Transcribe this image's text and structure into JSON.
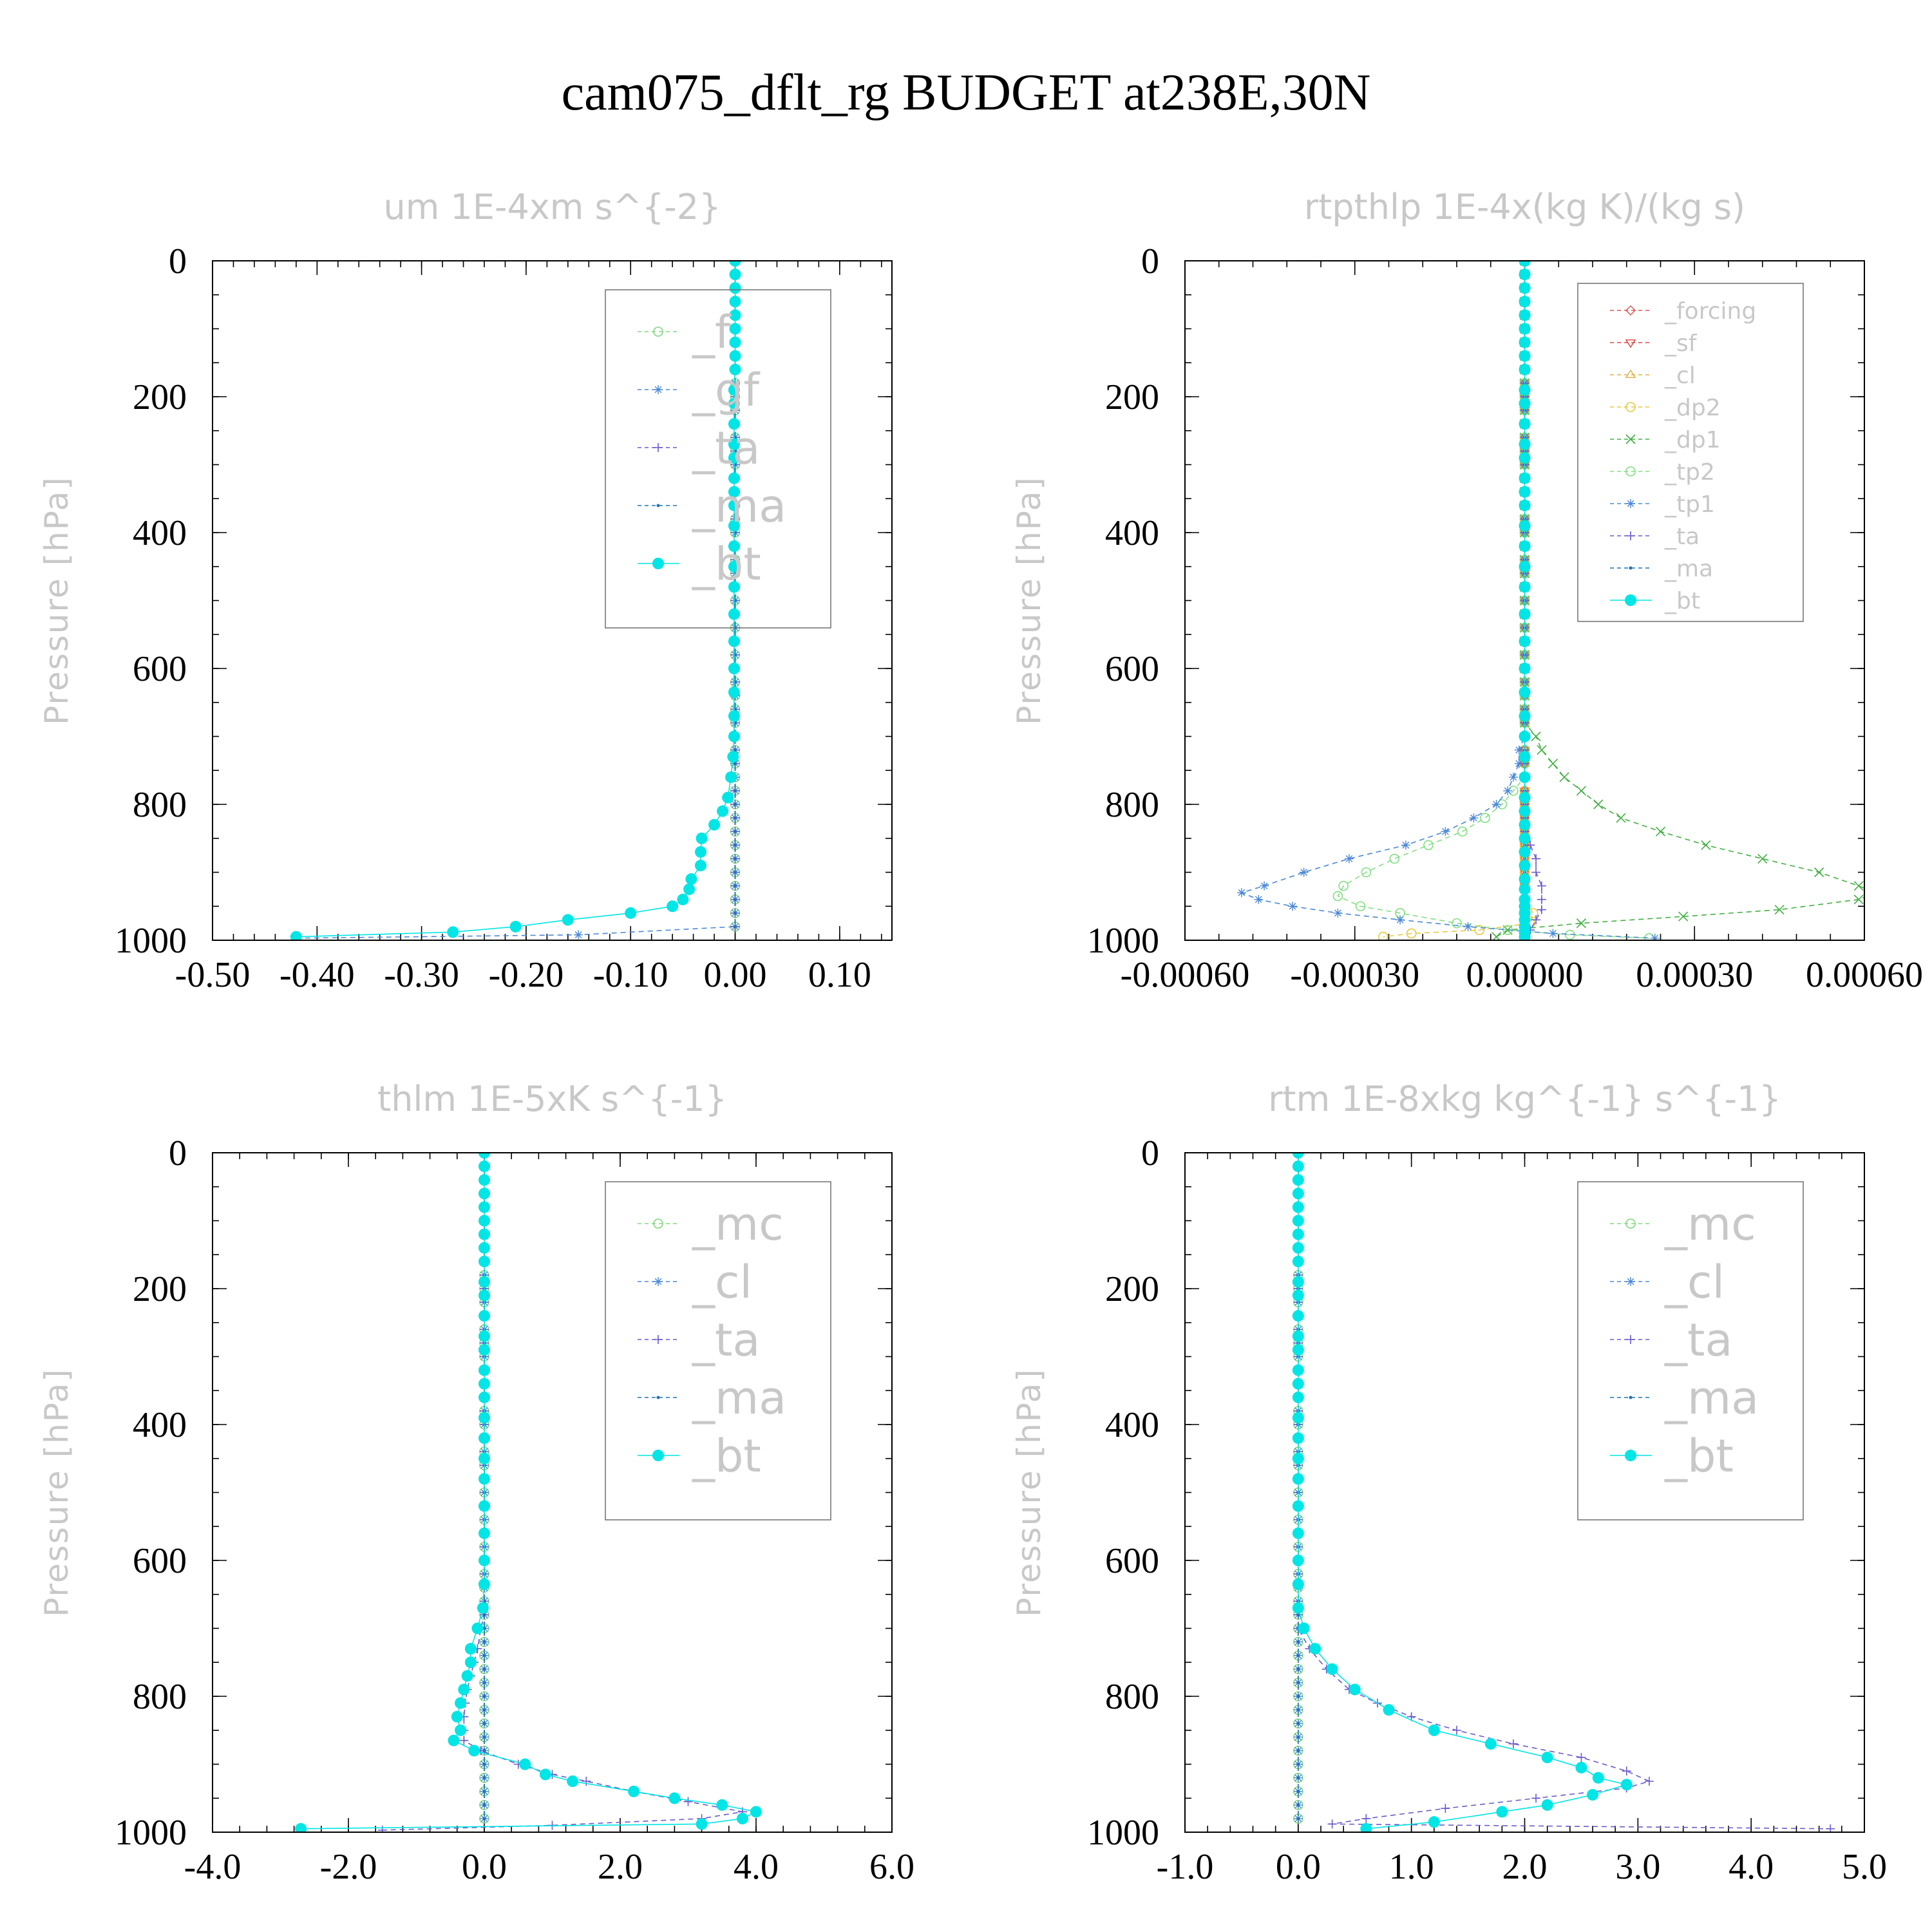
{
  "title": "cam075_dflt_rg  BUDGET at238E,30N",
  "colors": {
    "f": "#7fd87f",
    "gf": "#4a88d8",
    "ta": "#6a5acd",
    "ma": "#1e73b4",
    "bt": "#00e5e5",
    "forcing": "#e05050",
    "sf": "#e04040",
    "cl_yellow": "#e0b040",
    "dp2": "#e8c840",
    "dp1": "#40b040",
    "tp2": "#80e080",
    "tp1": "#4a88d8",
    "mc": "#7fd87f",
    "cl": "#4a88d8"
  },
  "chart_data": [
    {
      "type": "line",
      "title": "um  1E-4xm s^{-2}",
      "ylabel": "Pressure [hPa]",
      "xlim": [
        -0.5,
        0.15
      ],
      "ylim": [
        1000,
        0
      ],
      "x_ticks": [
        -0.5,
        -0.4,
        -0.3,
        -0.2,
        -0.1,
        0.0,
        0.1
      ],
      "x_tick_labels": [
        "-0.50",
        "-0.40",
        "-0.30",
        "-0.20",
        "-0.10",
        "0.00",
        "0.10"
      ],
      "y_ticks": [
        0,
        200,
        400,
        600,
        800,
        1000
      ],
      "y_tick_labels": [
        "0",
        "200",
        "400",
        "600",
        "800",
        "1000"
      ],
      "legend_position": "top-right",
      "series": [
        {
          "name": "_f",
          "marker": "circle-open",
          "color": "#7fd87f",
          "constant": 0.0
        },
        {
          "name": "_gf",
          "marker": "asterisk",
          "color": "#4a88d8",
          "constant": 0.0,
          "pressure": [
            992,
            997
          ],
          "x_near_surface": [
            -0.15,
            -0.42
          ]
        },
        {
          "name": "_ta",
          "marker": "plus",
          "color": "#6a5acd",
          "constant": 0.0
        },
        {
          "name": "_ma",
          "marker": "dot",
          "color": "#1e73b4",
          "constant": 0.0
        },
        {
          "name": "_bt",
          "marker": "filled-circle",
          "color": "#00e5e5",
          "pressure": [
            0,
            20,
            40,
            60,
            80,
            100,
            120,
            140,
            160,
            190,
            210,
            240,
            270,
            290,
            320,
            340,
            360,
            390,
            420,
            450,
            480,
            520,
            560,
            600,
            635,
            670,
            700,
            730,
            760,
            790,
            810,
            830,
            850,
            870,
            890,
            910,
            925,
            940,
            950,
            960,
            970,
            980,
            988,
            995
          ],
          "values": [
            0.0,
            0.0,
            0.0,
            0.0,
            0.0,
            0.0,
            0.0,
            0.0,
            0.0,
            -0.001,
            -0.001,
            -0.001,
            -0.001,
            -0.001,
            -0.001,
            -0.001,
            -0.001,
            -0.001,
            -0.001,
            -0.001,
            -0.001,
            -0.001,
            -0.001,
            -0.001,
            -0.001,
            -0.001,
            -0.001,
            -0.002,
            -0.004,
            -0.007,
            -0.012,
            -0.02,
            -0.032,
            -0.033,
            -0.033,
            -0.042,
            -0.044,
            -0.05,
            -0.06,
            -0.1,
            -0.16,
            -0.21,
            -0.27,
            -0.42
          ]
        }
      ]
    },
    {
      "type": "line",
      "title": "rtpthlp  1E-4x(kg K)/(kg s)",
      "ylabel": "Pressure [hPa]",
      "xlim": [
        -0.0006,
        0.0006
      ],
      "ylim": [
        1000,
        0
      ],
      "x_ticks": [
        -0.0006,
        -0.0003,
        0.0,
        0.0003,
        0.0006
      ],
      "x_tick_labels": [
        "-0.00060",
        "-0.00030",
        "0.00000",
        "0.00030",
        "0.00060"
      ],
      "y_ticks": [
        0,
        200,
        400,
        600,
        800,
        1000
      ],
      "y_tick_labels": [
        "0",
        "200",
        "400",
        "600",
        "800",
        "1000"
      ],
      "legend_position": "top-right",
      "series": [
        {
          "name": "_forcing",
          "marker": "diamond-open",
          "color": "#e05050",
          "constant": 0.0
        },
        {
          "name": "_sf",
          "marker": "triangle-down-open",
          "color": "#e04040",
          "constant": 0.0
        },
        {
          "name": "_cl",
          "marker": "triangle-up-open",
          "color": "#e0b040",
          "constant": 0.0
        },
        {
          "name": "_dp2",
          "marker": "circle-open",
          "color": "#e8c840",
          "constant": 0.0,
          "pressure": [
            960,
            975,
            985,
            990,
            995
          ],
          "values": [
            1.5e-05,
            1e-05,
            -8e-05,
            -0.0002,
            -0.00025
          ]
        },
        {
          "name": "_dp1",
          "marker": "x",
          "color": "#40b040",
          "pressure": [
            700,
            720,
            740,
            760,
            780,
            800,
            820,
            840,
            860,
            880,
            900,
            920,
            930,
            940,
            955,
            965,
            975,
            985,
            995
          ],
          "values": [
            2e-05,
            3e-05,
            5e-05,
            7e-05,
            0.0001,
            0.00013,
            0.00017,
            0.00024,
            0.00032,
            0.00042,
            0.00052,
            0.00059,
            0.00062,
            0.00059,
            0.00045,
            0.00028,
            0.0001,
            -3e-05,
            -5e-05
          ]
        },
        {
          "name": "_tp2",
          "marker": "circle-open",
          "color": "#80e080",
          "pressure": [
            780,
            800,
            820,
            840,
            860,
            880,
            900,
            920,
            935,
            950,
            960,
            975,
            985,
            992,
            997
          ],
          "values": [
            -2e-05,
            -4e-05,
            -7e-05,
            -0.00011,
            -0.00017,
            -0.00023,
            -0.00028,
            -0.00032,
            -0.00033,
            -0.00029,
            -0.00022,
            -0.00012,
            -3e-05,
            8e-05,
            0.00022
          ]
        },
        {
          "name": "_tp1",
          "marker": "asterisk",
          "color": "#4a88d8",
          "pressure": [
            720,
            740,
            760,
            780,
            800,
            820,
            840,
            860,
            880,
            900,
            920,
            930,
            940,
            950,
            960,
            970,
            980,
            990,
            997
          ],
          "values": [
            -1e-05,
            -1e-05,
            -2e-05,
            -3e-05,
            -5e-05,
            -9e-05,
            -0.00014,
            -0.00021,
            -0.00031,
            -0.00039,
            -0.00046,
            -0.0005,
            -0.00047,
            -0.00041,
            -0.00033,
            -0.00022,
            -0.0001,
            5e-05,
            0.00023
          ]
        },
        {
          "name": "_ta",
          "marker": "plus",
          "color": "#6a5acd",
          "pressure": [
            860,
            880,
            900,
            920,
            940,
            955,
            970,
            985,
            995
          ],
          "values": [
            1e-05,
            2e-05,
            2e-05,
            3e-05,
            3e-05,
            3e-05,
            2e-05,
            1e-05,
            0.0
          ]
        },
        {
          "name": "_ma",
          "marker": "dot",
          "color": "#1e73b4",
          "constant": 0.0
        },
        {
          "name": "_bt",
          "marker": "filled-circle",
          "color": "#00e5e5",
          "pressure": [
            0,
            20,
            40,
            60,
            80,
            100,
            120,
            140,
            160,
            190,
            210,
            240,
            270,
            290,
            320,
            340,
            360,
            390,
            420,
            450,
            480,
            520,
            560,
            600,
            635,
            670,
            700,
            730,
            760,
            790,
            810,
            830,
            850,
            870,
            890,
            910,
            925,
            940,
            950,
            960,
            970,
            980,
            988,
            995
          ],
          "values": [
            0.0,
            0.0,
            0.0,
            0.0,
            0.0,
            0.0,
            0.0,
            0.0,
            0.0,
            0.0,
            0.0,
            0.0,
            0.0,
            0.0,
            0.0,
            0.0,
            0.0,
            0.0,
            0.0,
            0.0,
            0.0,
            0.0,
            0.0,
            0.0,
            0.0,
            0.0,
            0.0,
            0.0,
            0.0,
            0.0,
            0.0,
            0.0,
            0.0,
            0.0,
            0.0,
            0.0,
            0.0,
            0.0,
            0.0,
            0.0,
            0.0,
            0.0,
            0.0,
            0.0
          ]
        }
      ]
    },
    {
      "type": "line",
      "title": "thlm  1E-5xK s^{-1}",
      "ylabel": "Pressure [hPa]",
      "xlim": [
        -4.0,
        6.0
      ],
      "ylim": [
        1000,
        0
      ],
      "x_ticks": [
        -4.0,
        -2.0,
        0.0,
        2.0,
        4.0,
        6.0
      ],
      "x_tick_labels": [
        "-4.0",
        "-2.0",
        "0.0",
        "2.0",
        "4.0",
        "6.0"
      ],
      "y_ticks": [
        0,
        200,
        400,
        600,
        800,
        1000
      ],
      "y_tick_labels": [
        "0",
        "200",
        "400",
        "600",
        "800",
        "1000"
      ],
      "legend_position": "top-right",
      "series": [
        {
          "name": "_mc",
          "marker": "circle-open",
          "color": "#7fd87f",
          "constant": 0.0
        },
        {
          "name": "_cl",
          "marker": "asterisk",
          "color": "#4a88d8",
          "constant": 0.0
        },
        {
          "name": "_ta",
          "marker": "plus",
          "color": "#6a5acd",
          "pressure": [
            700,
            730,
            750,
            770,
            790,
            810,
            830,
            850,
            865,
            880,
            900,
            915,
            925,
            940,
            955,
            970,
            980,
            990,
            997
          ],
          "values": [
            -0.05,
            -0.1,
            -0.15,
            -0.2,
            -0.25,
            -0.28,
            -0.3,
            -0.3,
            -0.3,
            -0.05,
            0.5,
            1.0,
            1.5,
            2.2,
            3.0,
            3.8,
            3.2,
            1.0,
            -1.5
          ]
        },
        {
          "name": "_ma",
          "marker": "dot",
          "color": "#1e73b4",
          "constant": 0.0
        },
        {
          "name": "_bt",
          "marker": "filled-circle",
          "color": "#00e5e5",
          "pressure": [
            0,
            20,
            40,
            60,
            80,
            100,
            120,
            140,
            160,
            190,
            210,
            240,
            270,
            290,
            320,
            340,
            360,
            390,
            420,
            450,
            480,
            520,
            560,
            600,
            635,
            670,
            700,
            730,
            750,
            770,
            790,
            810,
            830,
            850,
            865,
            880,
            900,
            915,
            925,
            940,
            950,
            960,
            970,
            980,
            988,
            995
          ],
          "values": [
            0.0,
            0.0,
            0.0,
            0.0,
            0.0,
            0.0,
            0.0,
            0.0,
            0.0,
            0.0,
            0.0,
            0.0,
            0.0,
            0.0,
            0.0,
            0.0,
            0.0,
            0.0,
            0.0,
            0.0,
            0.0,
            0.0,
            0.0,
            0.0,
            0.0,
            -0.02,
            -0.1,
            -0.2,
            -0.2,
            -0.25,
            -0.3,
            -0.35,
            -0.4,
            -0.35,
            -0.45,
            -0.15,
            0.6,
            0.9,
            1.3,
            2.2,
            2.8,
            3.5,
            4.0,
            3.8,
            3.2,
            -2.7
          ]
        }
      ]
    },
    {
      "type": "line",
      "title": "rtm  1E-8xkg kg^{-1} s^{-1}",
      "ylabel": "Pressure [hPa]",
      "xlim": [
        -1.0,
        5.0
      ],
      "ylim": [
        1000,
        0
      ],
      "x_ticks": [
        -1.0,
        0.0,
        1.0,
        2.0,
        3.0,
        4.0,
        5.0
      ],
      "x_tick_labels": [
        "-1.0",
        "0.0",
        "1.0",
        "2.0",
        "3.0",
        "4.0",
        "5.0"
      ],
      "y_ticks": [
        0,
        200,
        400,
        600,
        800,
        1000
      ],
      "y_tick_labels": [
        "0",
        "200",
        "400",
        "600",
        "800",
        "1000"
      ],
      "legend_position": "top-right",
      "series": [
        {
          "name": "_mc",
          "marker": "circle-open",
          "color": "#7fd87f",
          "constant": 0.0
        },
        {
          "name": "_cl",
          "marker": "asterisk",
          "color": "#4a88d8",
          "constant": 0.0
        },
        {
          "name": "_ta",
          "marker": "plus",
          "color": "#6a5acd",
          "pressure": [
            700,
            730,
            760,
            790,
            810,
            830,
            850,
            870,
            890,
            910,
            925,
            935,
            950,
            965,
            980,
            988,
            995
          ],
          "values": [
            0.0,
            0.1,
            0.25,
            0.45,
            0.7,
            1.0,
            1.4,
            1.9,
            2.5,
            2.9,
            3.1,
            2.9,
            2.1,
            1.3,
            0.6,
            0.3,
            4.7
          ]
        },
        {
          "name": "_ma",
          "marker": "dot",
          "color": "#1e73b4",
          "constant": 0.0
        },
        {
          "name": "_bt",
          "marker": "filled-circle",
          "color": "#00e5e5",
          "pressure": [
            0,
            20,
            40,
            60,
            80,
            100,
            120,
            140,
            160,
            190,
            210,
            240,
            270,
            290,
            320,
            340,
            360,
            390,
            420,
            450,
            480,
            520,
            560,
            600,
            635,
            670,
            700,
            730,
            760,
            790,
            820,
            850,
            870,
            890,
            905,
            920,
            930,
            945,
            960,
            970,
            985,
            995
          ],
          "values": [
            0.0,
            0.0,
            0.0,
            0.0,
            0.0,
            0.0,
            0.0,
            0.0,
            0.0,
            0.0,
            0.0,
            0.0,
            0.0,
            0.0,
            0.0,
            0.0,
            0.0,
            0.0,
            0.0,
            0.0,
            0.0,
            0.0,
            0.0,
            0.0,
            0.0,
            0.0,
            0.05,
            0.15,
            0.3,
            0.5,
            0.8,
            1.2,
            1.7,
            2.2,
            2.5,
            2.65,
            2.9,
            2.6,
            2.2,
            1.8,
            1.2,
            0.6
          ]
        }
      ]
    }
  ]
}
